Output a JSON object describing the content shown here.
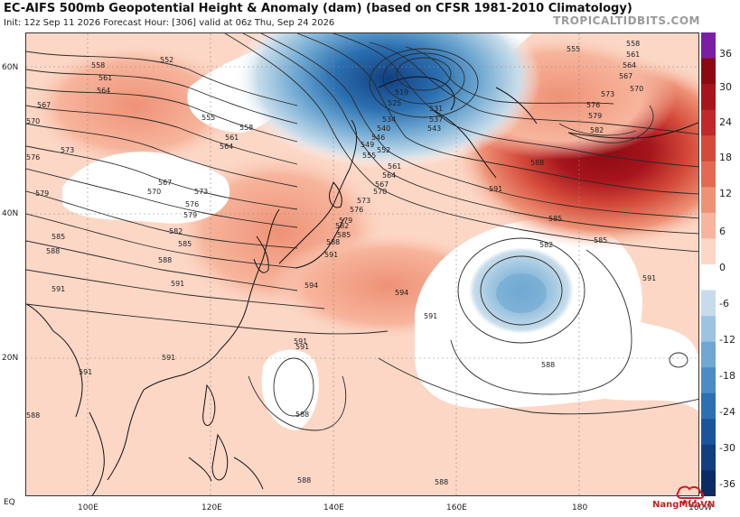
{
  "header": {
    "title": "EC-AIFS 500mb Geopotential Height & Anomaly (dam) (based on CFSR 1981-2010 Climatology)",
    "subtitle": "Init: 12z Sep 11 2026   Forecast Hour: [306]   valid at 06z Thu, Sep 24 2026",
    "credit": "TROPICALTIDBITS.COM"
  },
  "axes": {
    "lat_labels": [
      "60N",
      "40N",
      "20N",
      "EQ"
    ],
    "lon_labels": [
      "100E",
      "120E",
      "140E",
      "160E",
      "180",
      "160W"
    ]
  },
  "colorbar": {
    "labels": [
      "36",
      "30",
      "24",
      "18",
      "12",
      "6",
      "0",
      "-6",
      "-12",
      "-18",
      "-24",
      "-30",
      "-36"
    ],
    "colors": [
      "#7b1fa2",
      "#8b0a12",
      "#a6141c",
      "#c0282a",
      "#d44a3a",
      "#e26a52",
      "#ee9276",
      "#f7b59d",
      "#fcd7c6",
      "#ffffff",
      "#c7dcea",
      "#9cc4e0",
      "#6fa8d2",
      "#4a8cc3",
      "#2c70b1",
      "#1a559b",
      "#113f80",
      "#0a2b63"
    ]
  },
  "contours": {
    "labels": [
      {
        "text": "558"
      },
      {
        "text": "552"
      },
      {
        "text": "561"
      },
      {
        "text": "564"
      },
      {
        "text": "567"
      },
      {
        "text": "570"
      },
      {
        "text": "573"
      },
      {
        "text": "576"
      },
      {
        "text": "579"
      },
      {
        "text": "555"
      },
      {
        "text": "558"
      },
      {
        "text": "561"
      },
      {
        "text": "564"
      },
      {
        "text": "567"
      },
      {
        "text": "570"
      },
      {
        "text": "573"
      },
      {
        "text": "576"
      },
      {
        "text": "579"
      },
      {
        "text": "582"
      },
      {
        "text": "585"
      },
      {
        "text": "588"
      },
      {
        "text": "585"
      },
      {
        "text": "588"
      },
      {
        "text": "591"
      },
      {
        "text": "591"
      },
      {
        "text": "594"
      },
      {
        "text": "594"
      },
      {
        "text": "591"
      },
      {
        "text": "591"
      },
      {
        "text": "588"
      },
      {
        "text": "591"
      },
      {
        "text": "588"
      },
      {
        "text": "519"
      },
      {
        "text": "525"
      },
      {
        "text": "531"
      },
      {
        "text": "534"
      },
      {
        "text": "537"
      },
      {
        "text": "540"
      },
      {
        "text": "543"
      },
      {
        "text": "546"
      },
      {
        "text": "549"
      },
      {
        "text": "552"
      },
      {
        "text": "555"
      },
      {
        "text": "561"
      },
      {
        "text": "564"
      },
      {
        "text": "567"
      },
      {
        "text": "570"
      },
      {
        "text": "573"
      },
      {
        "text": "576"
      },
      {
        "text": "579"
      },
      {
        "text": "582"
      },
      {
        "text": "585"
      },
      {
        "text": "588"
      },
      {
        "text": "591"
      },
      {
        "text": "555"
      },
      {
        "text": "558"
      },
      {
        "text": "561"
      },
      {
        "text": "564"
      },
      {
        "text": "567"
      },
      {
        "text": "570"
      },
      {
        "text": "573"
      },
      {
        "text": "576"
      },
      {
        "text": "579"
      },
      {
        "text": "582"
      },
      {
        "text": "588"
      },
      {
        "text": "591"
      },
      {
        "text": "585"
      },
      {
        "text": "582"
      },
      {
        "text": "585"
      },
      {
        "text": "591"
      },
      {
        "text": "591"
      },
      {
        "text": "588"
      },
      {
        "text": "588"
      },
      {
        "text": "588"
      },
      {
        "text": "591"
      }
    ]
  },
  "logo": {
    "text": "NangMuaVN"
  }
}
